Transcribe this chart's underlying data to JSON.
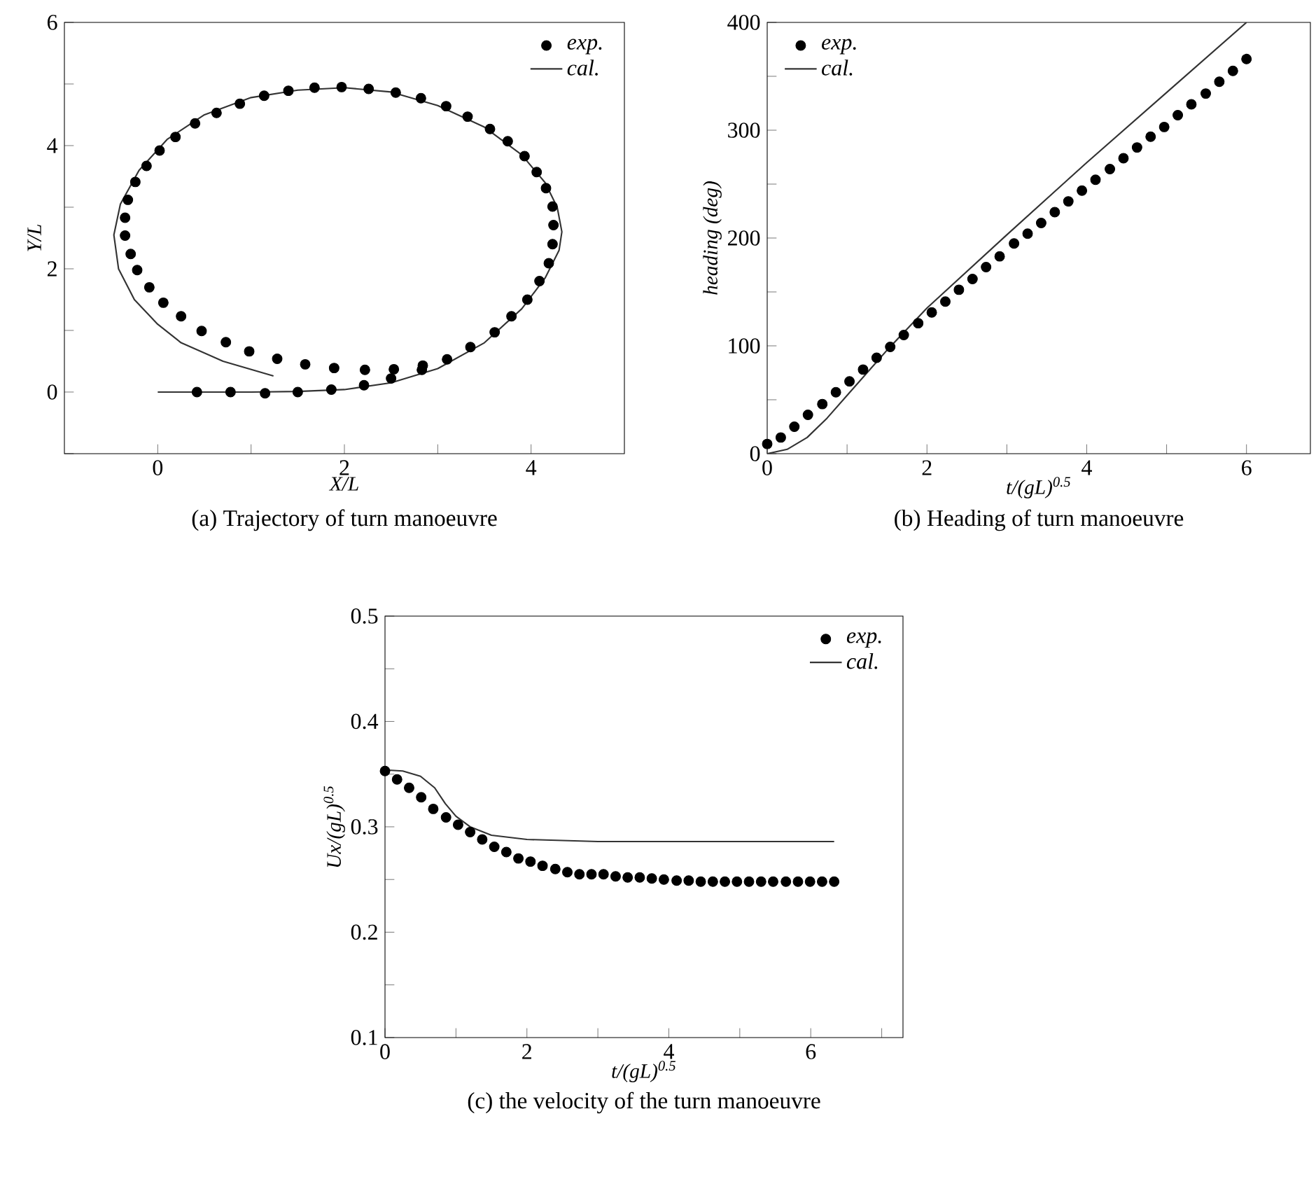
{
  "chart_data": [
    {
      "type": "line",
      "title": "(a) Trajectory of turn manoeuvre",
      "xlabel": "X/L",
      "ylabel": "Y/L",
      "xlim": [
        -1,
        5
      ],
      "ylim": [
        -1,
        6
      ],
      "xticks": [
        0,
        {
          "value": 1,
          "label": null
        },
        2,
        {
          "value": 3,
          "label": null
        },
        4
      ],
      "yticks": [
        {
          "value": -1,
          "label": null
        },
        0,
        {
          "value": 1,
          "label": null
        },
        2,
        {
          "value": 3,
          "label": null
        },
        4,
        {
          "value": 5,
          "label": null
        },
        6
      ],
      "legend": "top right",
      "line_style": "solid",
      "series": [
        {
          "name": "exp.",
          "type": "scatter",
          "marker": "circle",
          "color": "#000000",
          "x": [
            0.42,
            0.78,
            1.15,
            1.5,
            1.86,
            2.21,
            2.5,
            2.83,
            3.1,
            3.35,
            3.61,
            3.79,
            3.96,
            4.09,
            4.19,
            4.23,
            4.24,
            4.23,
            4.16,
            4.06,
            3.93,
            3.75,
            3.56,
            3.32,
            3.09,
            2.82,
            2.55,
            2.26,
            1.97,
            1.68,
            1.4,
            1.14,
            0.88,
            0.63,
            0.4,
            0.19,
            0.02,
            -0.12,
            -0.24,
            -0.32,
            -0.35,
            -0.35,
            -0.29,
            -0.22,
            -0.09,
            0.06,
            0.25,
            0.47,
            0.73,
            0.98,
            1.28,
            1.58,
            1.89,
            2.22,
            2.53,
            2.84
          ],
          "values": [
            0,
            0,
            -0.02,
            0,
            0.04,
            0.11,
            0.22,
            0.36,
            0.53,
            0.73,
            0.97,
            1.23,
            1.5,
            1.8,
            2.09,
            2.4,
            2.71,
            3.01,
            3.31,
            3.57,
            3.83,
            4.07,
            4.27,
            4.47,
            4.64,
            4.77,
            4.86,
            4.92,
            4.95,
            4.94,
            4.89,
            4.81,
            4.68,
            4.53,
            4.36,
            4.14,
            3.92,
            3.67,
            3.41,
            3.12,
            2.83,
            2.54,
            2.24,
            1.98,
            1.7,
            1.45,
            1.23,
            0.99,
            0.81,
            0.66,
            0.54,
            0.45,
            0.39,
            0.36,
            0.37,
            0.43
          ]
        },
        {
          "name": "cal.",
          "marker": "none",
          "color": "#333333",
          "x": [
            0,
            1.0,
            1.5,
            2.0,
            2.5,
            3.0,
            3.5,
            3.9,
            4.15,
            4.3,
            4.33,
            4.28,
            4.15,
            3.9,
            3.5,
            3.0,
            2.5,
            2.0,
            1.5,
            1.0,
            0.5,
            0.1,
            -0.2,
            -0.4,
            -0.47,
            -0.42,
            -0.25,
            0.0,
            0.25,
            0.7,
            1.24
          ],
          "values": [
            0,
            0,
            0.01,
            0.04,
            0.15,
            0.38,
            0.8,
            1.35,
            1.85,
            2.3,
            2.6,
            3.0,
            3.4,
            3.85,
            4.3,
            4.65,
            4.87,
            4.94,
            4.9,
            4.78,
            4.5,
            4.1,
            3.6,
            3.05,
            2.55,
            2.0,
            1.5,
            1.1,
            0.8,
            0.5,
            0.26
          ]
        }
      ]
    },
    {
      "type": "line",
      "title": "(b) Heading of turn manoeuvre",
      "xlabel": "t/(gL)$^{0.5}$",
      "ylabel": "heading (deg)",
      "xlim": [
        0,
        6.8
      ],
      "ylim": [
        0,
        400
      ],
      "xticks": [
        0,
        {
          "value": 1,
          "label": null
        },
        2,
        {
          "value": 3,
          "label": null
        },
        4,
        {
          "value": 5,
          "label": null
        },
        6
      ],
      "yticks": [
        0,
        {
          "value": 50,
          "label": null
        },
        100,
        {
          "value": 150,
          "label": null
        },
        200,
        {
          "value": 250,
          "label": null
        },
        300,
        {
          "value": 350,
          "label": null
        },
        400
      ],
      "legend": "top left",
      "line_style": "solid",
      "series": [
        {
          "name": "exp.",
          "type": "scatter",
          "marker": "circle",
          "color": "#000000",
          "x": [
            0,
            0.17,
            0.34,
            0.51,
            0.69,
            0.86,
            1.03,
            1.2,
            1.37,
            1.54,
            1.71,
            1.89,
            2.06,
            2.23,
            2.4,
            2.57,
            2.74,
            2.91,
            3.09,
            3.26,
            3.43,
            3.6,
            3.77,
            3.94,
            4.11,
            4.29,
            4.46,
            4.63,
            4.8,
            4.97,
            5.14,
            5.31,
            5.49,
            5.66,
            5.83,
            6.0
          ],
          "values": [
            9,
            15,
            25,
            36,
            46,
            57,
            67,
            78,
            89,
            99,
            110,
            121,
            131,
            141,
            152,
            162,
            173,
            183,
            195,
            204,
            214,
            224,
            234,
            244,
            254,
            264,
            274,
            284,
            294,
            303,
            314,
            324,
            334,
            345,
            355,
            366
          ]
        },
        {
          "name": "cal.",
          "marker": "none",
          "color": "#333333",
          "x": [
            0,
            0.25,
            0.5,
            0.75,
            1,
            1.5,
            2,
            3,
            4,
            5,
            6
          ],
          "values": [
            0,
            4,
            15,
            33,
            54,
            96,
            135,
            203,
            270,
            335,
            400
          ]
        }
      ]
    },
    {
      "type": "line",
      "title": "(c) the velocity of the turn manoeuvre",
      "xlabel": "t/(gL)$^{0.5}$",
      "ylabel": "Ux/(gL)$^{0.5}$",
      "xlim": [
        0,
        7.3
      ],
      "ylim": [
        0.1,
        0.5
      ],
      "xticks": [
        0,
        {
          "value": 1,
          "label": null
        },
        2,
        {
          "value": 3,
          "label": null
        },
        4,
        {
          "value": 5,
          "label": null
        },
        6,
        {
          "value": 7,
          "label": null
        }
      ],
      "yticks": [
        0.1,
        {
          "value": 0.15,
          "label": null
        },
        0.2,
        {
          "value": 0.25,
          "label": null
        },
        0.3,
        {
          "value": 0.35,
          "label": null
        },
        0.4,
        {
          "value": 0.45,
          "label": null
        },
        0.5
      ],
      "legend": "top right",
      "line_style": "solid",
      "series": [
        {
          "name": "exp.",
          "type": "scatter",
          "marker": "circle",
          "color": "#000000",
          "x": [
            0,
            0.17,
            0.34,
            0.51,
            0.68,
            0.86,
            1.03,
            1.2,
            1.37,
            1.54,
            1.71,
            1.88,
            2.05,
            2.22,
            2.4,
            2.57,
            2.74,
            2.91,
            3.08,
            3.25,
            3.42,
            3.59,
            3.76,
            3.93,
            4.11,
            4.28,
            4.45,
            4.62,
            4.79,
            4.96,
            5.13,
            5.3,
            5.47,
            5.65,
            5.82,
            5.99,
            6.16,
            6.33
          ],
          "values": [
            0.353,
            0.345,
            0.337,
            0.328,
            0.317,
            0.309,
            0.302,
            0.295,
            0.288,
            0.281,
            0.276,
            0.27,
            0.267,
            0.263,
            0.26,
            0.257,
            0.255,
            0.255,
            0.255,
            0.253,
            0.252,
            0.252,
            0.251,
            0.25,
            0.249,
            0.249,
            0.248,
            0.248,
            0.248,
            0.248,
            0.248,
            0.248,
            0.248,
            0.248,
            0.248,
            0.248,
            0.248,
            0.248
          ]
        },
        {
          "name": "cal.",
          "marker": "none",
          "color": "#333333",
          "x": [
            0,
            0.25,
            0.5,
            0.7,
            0.85,
            1.0,
            1.2,
            1.5,
            2.0,
            3.0,
            4.5,
            6.33
          ],
          "values": [
            0.354,
            0.353,
            0.348,
            0.337,
            0.322,
            0.31,
            0.3,
            0.292,
            0.288,
            0.286,
            0.286,
            0.286
          ]
        }
      ]
    }
  ]
}
